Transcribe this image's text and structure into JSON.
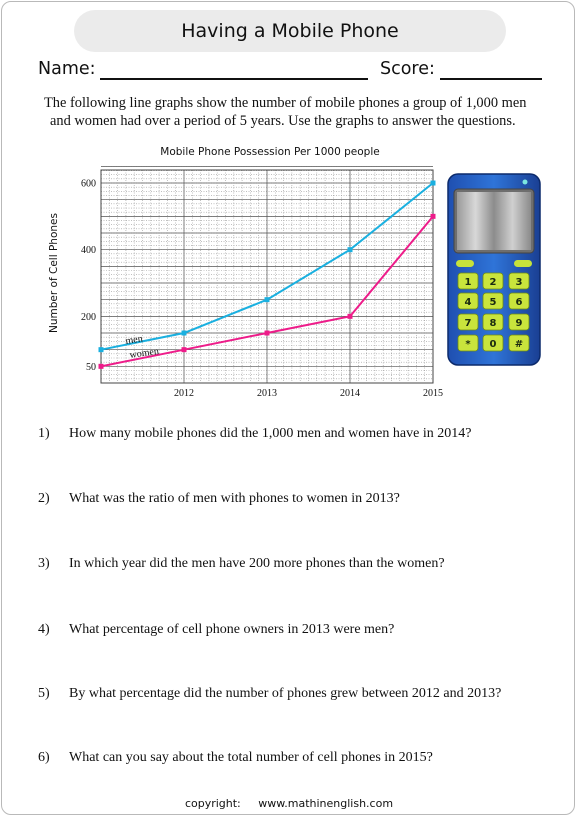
{
  "header": {
    "title": "Having a Mobile Phone",
    "name_label": "Name:",
    "score_label": "Score:"
  },
  "intro": {
    "line1": "The following line graphs show the number of mobile phones a group of 1,000 men",
    "line2": "and women had over a period of 5 years. Use the graphs to answer the questions."
  },
  "chart_data": {
    "type": "line",
    "title": "Mobile Phone Possession Per 1000 people",
    "ylabel": "Number of Cell Phones",
    "xlabel": "",
    "x": [
      2011,
      2012,
      2013,
      2014,
      2015
    ],
    "x_tick_labels": [
      "2012",
      "2013",
      "2014",
      "2015"
    ],
    "y_tick_labels": [
      "50",
      "200",
      "400",
      "600"
    ],
    "ylim": [
      0,
      650
    ],
    "grid": true,
    "series": [
      {
        "name": "men",
        "color": "#1ab0e0",
        "values": [
          100,
          150,
          250,
          400,
          600
        ]
      },
      {
        "name": "women",
        "color": "#ee1c8a",
        "values": [
          50,
          100,
          150,
          200,
          500
        ]
      }
    ]
  },
  "phone": {
    "keys": [
      "1",
      "2",
      "3",
      "4",
      "5",
      "6",
      "7",
      "8",
      "9",
      "*",
      "0",
      "#"
    ]
  },
  "questions": [
    {
      "num": "1)",
      "text": "How many mobile phones did the 1,000 men and women have in 2014?"
    },
    {
      "num": "2)",
      "text": "What was the ratio of men with phones to women in 2013?"
    },
    {
      "num": "3)",
      "text": "In which year did the men have 200 more phones than the women?"
    },
    {
      "num": "4)",
      "text": "What percentage of cell phone owners in 2013 were men?"
    },
    {
      "num": "5)",
      "text": "By what percentage did the number of phones grew between 2012 and 2013?"
    },
    {
      "num": "6)",
      "text": "What can you say about the total number of cell phones in 2015?"
    }
  ],
  "footer": {
    "copyright": "copyright:",
    "site": "www.mathinenglish.com"
  }
}
